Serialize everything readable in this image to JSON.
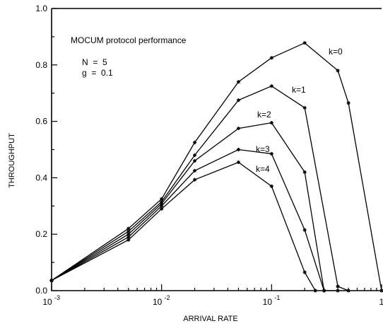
{
  "chart_data": {
    "type": "line",
    "title": "",
    "xlabel": "ARRIVAL RATE",
    "ylabel": "THROUGHPUT",
    "xscale": "log",
    "xlim": [
      0.001,
      1
    ],
    "ylim": [
      0,
      1.0
    ],
    "grid": false,
    "legend": "none",
    "annotations": [
      "MOCUM protocol performance",
      "N  =  5",
      "g  =  0.1"
    ],
    "yticks": [
      {
        "value": 0.0,
        "label": "0.0"
      },
      {
        "value": 0.2,
        "label": "0.2"
      },
      {
        "value": 0.4,
        "label": "0.4"
      },
      {
        "value": 0.6,
        "label": "0.6"
      },
      {
        "value": 0.8,
        "label": "0.8"
      },
      {
        "value": 1.0,
        "label": "1.0"
      }
    ],
    "xticks": [
      {
        "value": 0.001,
        "base": "10",
        "exp": "-3"
      },
      {
        "value": 0.01,
        "base": "10",
        "exp": "-2"
      },
      {
        "value": 0.1,
        "base": "10",
        "exp": "-1"
      },
      {
        "value": 1,
        "base": "1",
        "exp": ""
      }
    ],
    "series": [
      {
        "name": "k=0",
        "points": [
          [
            0.001,
            0.036
          ],
          [
            0.005,
            0.22
          ],
          [
            0.01,
            0.325
          ],
          [
            0.02,
            0.525
          ],
          [
            0.05,
            0.74
          ],
          [
            0.1,
            0.825
          ],
          [
            0.2,
            0.878
          ],
          [
            0.4,
            0.78
          ],
          [
            0.5,
            0.665
          ],
          [
            1,
            0.0
          ]
        ]
      },
      {
        "name": "k=1",
        "points": [
          [
            0.001,
            0.036
          ],
          [
            0.005,
            0.21
          ],
          [
            0.01,
            0.315
          ],
          [
            0.02,
            0.48
          ],
          [
            0.05,
            0.675
          ],
          [
            0.1,
            0.725
          ],
          [
            0.2,
            0.648
          ],
          [
            0.4,
            0.015
          ],
          [
            0.5,
            0.0
          ]
        ]
      },
      {
        "name": "k=2",
        "points": [
          [
            0.001,
            0.036
          ],
          [
            0.005,
            0.2
          ],
          [
            0.01,
            0.308
          ],
          [
            0.02,
            0.46
          ],
          [
            0.05,
            0.575
          ],
          [
            0.1,
            0.595
          ],
          [
            0.2,
            0.42
          ],
          [
            0.3,
            0.0
          ],
          [
            0.4,
            0.0
          ]
        ]
      },
      {
        "name": "k=3",
        "points": [
          [
            0.001,
            0.036
          ],
          [
            0.005,
            0.19
          ],
          [
            0.01,
            0.3
          ],
          [
            0.02,
            0.425
          ],
          [
            0.05,
            0.5
          ],
          [
            0.1,
            0.485
          ],
          [
            0.2,
            0.215
          ],
          [
            0.3,
            0.0
          ]
        ]
      },
      {
        "name": "k=4",
        "points": [
          [
            0.001,
            0.036
          ],
          [
            0.005,
            0.18
          ],
          [
            0.01,
            0.29
          ],
          [
            0.02,
            0.393
          ],
          [
            0.05,
            0.455
          ],
          [
            0.1,
            0.37
          ],
          [
            0.2,
            0.065
          ],
          [
            0.25,
            0.0
          ]
        ]
      }
    ]
  }
}
